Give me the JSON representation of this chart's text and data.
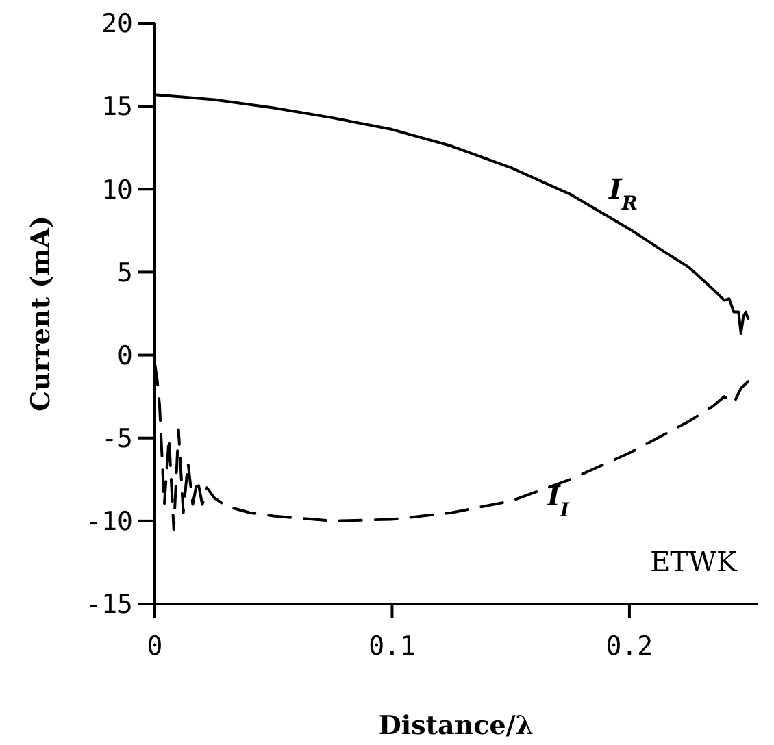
{
  "chart_data": {
    "type": "line",
    "xlabel": "Distance/λ",
    "ylabel": "Current (mA)",
    "xlim": [
      0,
      0.254
    ],
    "xticks": [
      0,
      0.1,
      0.2
    ],
    "ylim": [
      -15,
      20
    ],
    "yticks": [
      -15,
      -10,
      -5,
      0,
      5,
      10,
      15,
      20
    ],
    "grid": false,
    "annotations": [
      "ETWK"
    ],
    "series": [
      {
        "name": "I$_{R}$",
        "color": "#000000",
        "line_style": "solid",
        "x": [
          0,
          0.025,
          0.05,
          0.075,
          0.1,
          0.125,
          0.15,
          0.175,
          0.2,
          0.215,
          0.225,
          0.235,
          0.24,
          0.242,
          0.244,
          0.246,
          0.247,
          0.248,
          0.249,
          0.25
        ],
        "values": [
          15.7,
          15.4,
          14.9,
          14.3,
          13.6,
          12.6,
          11.3,
          9.7,
          7.6,
          6.2,
          5.3,
          4.0,
          3.3,
          3.4,
          2.6,
          2.6,
          1.3,
          2.3,
          2.6,
          2.2
        ]
      },
      {
        "name": "I$_{I}$",
        "color": "#000000",
        "line_style": "dashed",
        "x": [
          0,
          0.001,
          0.002,
          0.004,
          0.006,
          0.008,
          0.01,
          0.012,
          0.014,
          0.016,
          0.018,
          0.02,
          0.022,
          0.025,
          0.03,
          0.04,
          0.05,
          0.075,
          0.1,
          0.125,
          0.15,
          0.175,
          0.2,
          0.225,
          0.235,
          0.24,
          0.244,
          0.247,
          0.25
        ],
        "values": [
          -0.5,
          -1.5,
          -3,
          -9,
          -5,
          -10.5,
          -4.5,
          -9.5,
          -6.5,
          -9,
          -7.5,
          -9,
          -8,
          -8.6,
          -9.1,
          -9.5,
          -9.7,
          -10.0,
          -9.9,
          -9.5,
          -8.8,
          -7.5,
          -5.9,
          -4.0,
          -3.1,
          -2.5,
          -2.9,
          -2.0,
          -1.6
        ]
      }
    ]
  }
}
